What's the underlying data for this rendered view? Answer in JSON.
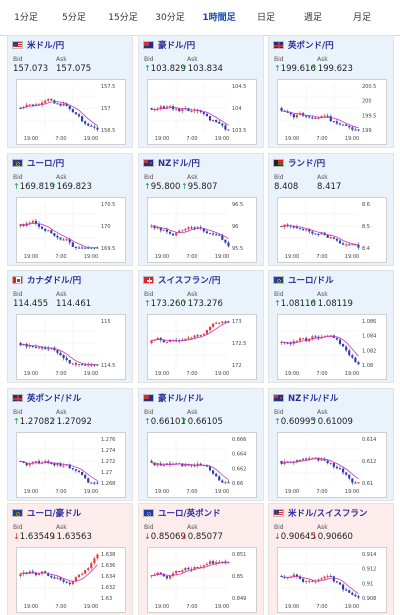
{
  "tabs": [
    {
      "label": "1分足"
    },
    {
      "label": "5分足"
    },
    {
      "label": "15分足"
    },
    {
      "label": "30分足"
    },
    {
      "label": "1時間足",
      "active": true
    },
    {
      "label": "日足"
    },
    {
      "label": "週足"
    },
    {
      "label": "月足"
    }
  ],
  "colors": {
    "up": "#1b9a3a",
    "down": "#d22c2c",
    "bull_candle": "#e23b3b",
    "bear_candle": "#2a3ea8",
    "ma": "#c436c4"
  },
  "labels": {
    "bid": "Bid",
    "ask": "Ask"
  },
  "cards": [
    {
      "name": "米ドル/円",
      "flag": "us",
      "bg": "blue",
      "dir": "",
      "bid": "157.073",
      "ask": "157.075",
      "yticks": [
        "157.5",
        "157",
        "156.5"
      ],
      "xticks": [
        "19:00",
        "7:00",
        "19:00"
      ],
      "trend": "down"
    },
    {
      "name": "豪ドル/円",
      "flag": "au",
      "bg": "blue",
      "dir": "up",
      "bid": "103.829",
      "ask": "103.834",
      "yticks": [
        "104.5",
        "104",
        "103.5"
      ],
      "xticks": [
        "19:00",
        "7:00",
        "19:00"
      ],
      "trend": "down"
    },
    {
      "name": "英ポンド/円",
      "flag": "gb",
      "bg": "blue",
      "dir": "up",
      "bid": "199.616",
      "ask": "199.623",
      "yticks": [
        "200.5",
        "200",
        "199.5",
        "199"
      ],
      "xticks": [
        "19:00",
        "7:00",
        "19:00"
      ],
      "trend": "down"
    },
    {
      "name": "ユーロ/円",
      "flag": "eu",
      "bg": "blue",
      "dir": "up",
      "bid": "169.819",
      "ask": "169.823",
      "yticks": [
        "170.5",
        "170",
        "169.5"
      ],
      "xticks": [
        "19:00",
        "7:00",
        "19:00"
      ],
      "trend": "down"
    },
    {
      "name": "NZドル/円",
      "flag": "nz",
      "bg": "blue",
      "dir": "up",
      "bid": "95.800",
      "ask": "95.807",
      "yticks": [
        "96.5",
        "96",
        "95.5"
      ],
      "xticks": [
        "19:00",
        "7:00",
        "19:00"
      ],
      "trend": "down"
    },
    {
      "name": "ランド/円",
      "flag": "za",
      "bg": "blue",
      "dir": "",
      "bid": "8.408",
      "ask": "8.417",
      "yticks": [
        "8.6",
        "8.5",
        "8.4"
      ],
      "xticks": [
        "19:00",
        "7:00",
        "19:00"
      ],
      "trend": "down"
    },
    {
      "name": "カナダドル/円",
      "flag": "ca",
      "bg": "blue",
      "dir": "",
      "bid": "114.455",
      "ask": "114.461",
      "yticks": [
        "115",
        "114.5"
      ],
      "xticks": [
        "19:00",
        "7:00",
        "19:00"
      ],
      "trend": "down"
    },
    {
      "name": "スイスフラン/円",
      "flag": "ch",
      "bg": "blue",
      "dir": "up",
      "bid": "173.260",
      "ask": "173.276",
      "yticks": [
        "173",
        "172.5",
        "172"
      ],
      "xticks": [
        "19:00",
        "7:00",
        "19:00"
      ],
      "trend": "up"
    },
    {
      "name": "ユーロ/ドル",
      "flag": "eu",
      "bg": "blue",
      "dir": "up",
      "bid": "1.08116",
      "ask": "1.08119",
      "yticks": [
        "1.086",
        "1.084",
        "1.082",
        "1.08"
      ],
      "xticks": [
        "19:00",
        "7:00",
        "19:00"
      ],
      "trend": "down"
    },
    {
      "name": "英ポンド/ドル",
      "flag": "gb",
      "bg": "blue",
      "dir": "up",
      "bid": "1.27082",
      "ask": "1.27092",
      "yticks": [
        "1.276",
        "1.274",
        "1.272",
        "1.27",
        "1.268"
      ],
      "xticks": [
        "19:00",
        "7:00",
        "19:00"
      ],
      "trend": "down"
    },
    {
      "name": "豪ドル/ドル",
      "flag": "au",
      "bg": "blue",
      "dir": "up",
      "bid": "0.66101",
      "ask": "0.66105",
      "yticks": [
        "0.666",
        "0.664",
        "0.662",
        "0.66"
      ],
      "xticks": [
        "19:00",
        "7:00",
        "19:00"
      ],
      "trend": "down"
    },
    {
      "name": "NZドル/ドル",
      "flag": "nz",
      "bg": "blue",
      "dir": "up",
      "bid": "0.60995",
      "ask": "0.61009",
      "yticks": [
        "0.614",
        "0.612",
        "0.61"
      ],
      "xticks": [
        "19:00",
        "7:00",
        "19:00"
      ],
      "trend": "down"
    },
    {
      "name": "ユーロ/豪ドル",
      "flag": "eu",
      "bg": "pink",
      "dir": "dn",
      "bid": "1.63549",
      "ask": "1.63563",
      "yticks": [
        "1.638",
        "1.636",
        "1.634",
        "1.632",
        "1.63"
      ],
      "xticks": [
        "19:00",
        "7:00",
        "19:00"
      ],
      "trend": "up"
    },
    {
      "name": "ユーロ/英ポンド",
      "flag": "eu",
      "bg": "pink",
      "dir": "dn",
      "bid": "0.85069",
      "ask": "0.85077",
      "yticks": [
        "0.851",
        "0.85",
        "0.849"
      ],
      "xticks": [
        "19:00",
        "7:00",
        "19:00"
      ],
      "trend": "flat"
    },
    {
      "name": "米ドル/スイスフラン",
      "flag": "us",
      "bg": "pink",
      "dir": "dn",
      "bid": "0.90645",
      "ask": "0.90660",
      "yticks": [
        "0.914",
        "0.912",
        "0.91",
        "0.908"
      ],
      "xticks": [
        "19:00",
        "7:00",
        "19:00"
      ],
      "trend": "down"
    }
  ]
}
